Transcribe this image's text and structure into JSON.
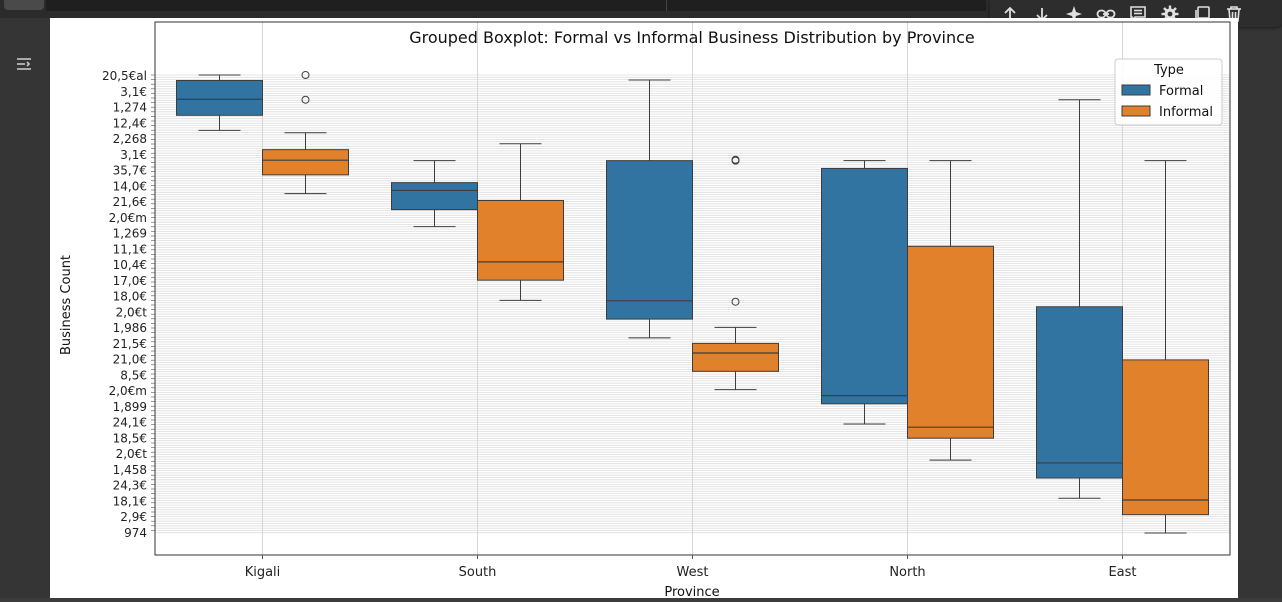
{
  "toolbar": {
    "items": [
      {
        "icon": "arrow-up-icon"
      },
      {
        "icon": "arrow-down-icon"
      },
      {
        "icon": "sparkle-icon"
      },
      {
        "icon": "link-icon"
      },
      {
        "icon": "comment-icon"
      },
      {
        "icon": "gear-icon"
      },
      {
        "icon": "mirror-cell-icon"
      },
      {
        "icon": "trash-icon"
      }
    ]
  },
  "gutter": {
    "icon": "output-toggle-icon"
  },
  "colors": {
    "formal": "#3274a1",
    "informal": "#e1812c",
    "grid": "#dddddd",
    "page_bg": "#3c3c3c"
  },
  "chart_data": {
    "type": "boxplot",
    "title": "Grouped Boxplot: Formal vs Informal Business Distribution by Province",
    "xlabel": "Province",
    "ylabel": "Business Count",
    "categories": [
      "Kigali",
      "South",
      "West",
      "North",
      "East"
    ],
    "legend": {
      "title": "Type",
      "position": "top-right"
    },
    "grid": true,
    "y_scale": "categorical (string tick labels, overlapping)",
    "y_ticks_visible": [
      "20,5€al",
      "3,1€",
      "1,274",
      "12,4€",
      "2,268",
      "3,1€",
      "35,7€",
      "14,0€",
      "21,6€",
      "2,0€m",
      "1,269",
      "11,1€",
      "10,4€",
      "17,0€",
      "18,0€",
      "2,0€t",
      "1,986",
      "21,5€",
      "21,0€",
      "8,5€",
      "2,0€m",
      "1,899",
      "24,1€",
      "18,5€",
      "2,0€t",
      "1,458",
      "24,3€",
      "18,1€",
      "2,9€",
      "974"
    ],
    "series": [
      {
        "name": "Formal",
        "boxes": [
          {
            "category": "Kigali",
            "whisker_low": 0.879,
            "q1": 0.912,
            "median": 0.947,
            "q3": 0.988,
            "whisker_high": 1.0,
            "outliers": []
          },
          {
            "category": "South",
            "whisker_low": 0.669,
            "q1": 0.706,
            "median": 0.748,
            "q3": 0.765,
            "whisker_high": 0.813,
            "outliers": []
          },
          {
            "category": "West",
            "whisker_low": 0.426,
            "q1": 0.467,
            "median": 0.507,
            "q3": 0.813,
            "whisker_high": 0.989,
            "outliers": []
          },
          {
            "category": "North",
            "whisker_low": 0.238,
            "q1": 0.282,
            "median": 0.3,
            "q3": 0.796,
            "whisker_high": 0.813,
            "outliers": []
          },
          {
            "category": "East",
            "whisker_low": 0.076,
            "q1": 0.12,
            "median": 0.153,
            "q3": 0.494,
            "whisker_high": 0.946,
            "outliers": []
          }
        ]
      },
      {
        "name": "Informal",
        "boxes": [
          {
            "category": "Kigali",
            "whisker_low": 0.741,
            "q1": 0.782,
            "median": 0.814,
            "q3": 0.837,
            "whisker_high": 0.874,
            "outliers": [
              1.0,
              0.946
            ]
          },
          {
            "category": "South",
            "whisker_low": 0.508,
            "q1": 0.552,
            "median": 0.592,
            "q3": 0.726,
            "whisker_high": 0.85,
            "outliers": []
          },
          {
            "category": "West",
            "whisker_low": 0.313,
            "q1": 0.353,
            "median": 0.393,
            "q3": 0.414,
            "whisker_high": 0.449,
            "outliers": [
              0.813,
              0.815,
              0.505
            ]
          },
          {
            "category": "North",
            "whisker_low": 0.159,
            "q1": 0.207,
            "median": 0.231,
            "q3": 0.626,
            "whisker_high": 0.813,
            "outliers": []
          },
          {
            "category": "East",
            "whisker_low": 0.0,
            "q1": 0.04,
            "median": 0.072,
            "q3": 0.378,
            "whisker_high": 0.813,
            "outliers": []
          }
        ]
      }
    ]
  }
}
